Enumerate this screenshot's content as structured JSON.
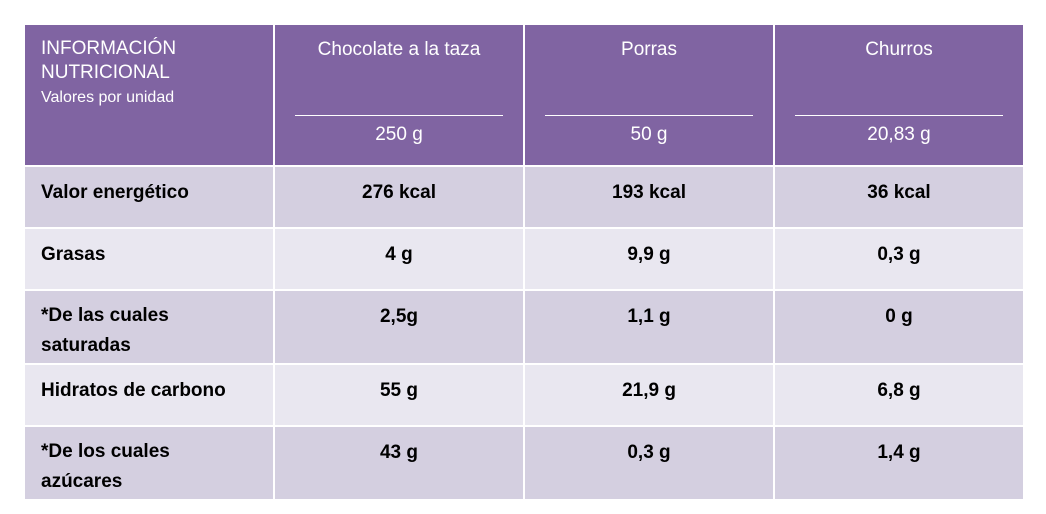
{
  "header": {
    "title": "INFORMACIÓN NUTRICIONAL",
    "subtitle": "Valores por unidad",
    "columns": [
      {
        "name": "Chocolate a la taza",
        "serving": "250 g"
      },
      {
        "name": "Porras",
        "serving": "50 g"
      },
      {
        "name": "Churros",
        "serving": "20,83 g"
      }
    ]
  },
  "table": {
    "rows": [
      [
        "Valor energético",
        "276 kcal",
        "193 kcal",
        "36 kcal"
      ],
      [
        "Grasas",
        "4 g",
        "9,9 g",
        "0,3 g"
      ],
      [
        "*De las cuales saturadas",
        "2,5g",
        "1,1 g",
        "0 g"
      ],
      [
        "Hidratos de carbono",
        "55 g",
        "21,9 g",
        "6,8 g"
      ],
      [
        "*De los cuales azúcares",
        "43 g",
        "0,3 g",
        "1,4 g"
      ]
    ]
  }
}
